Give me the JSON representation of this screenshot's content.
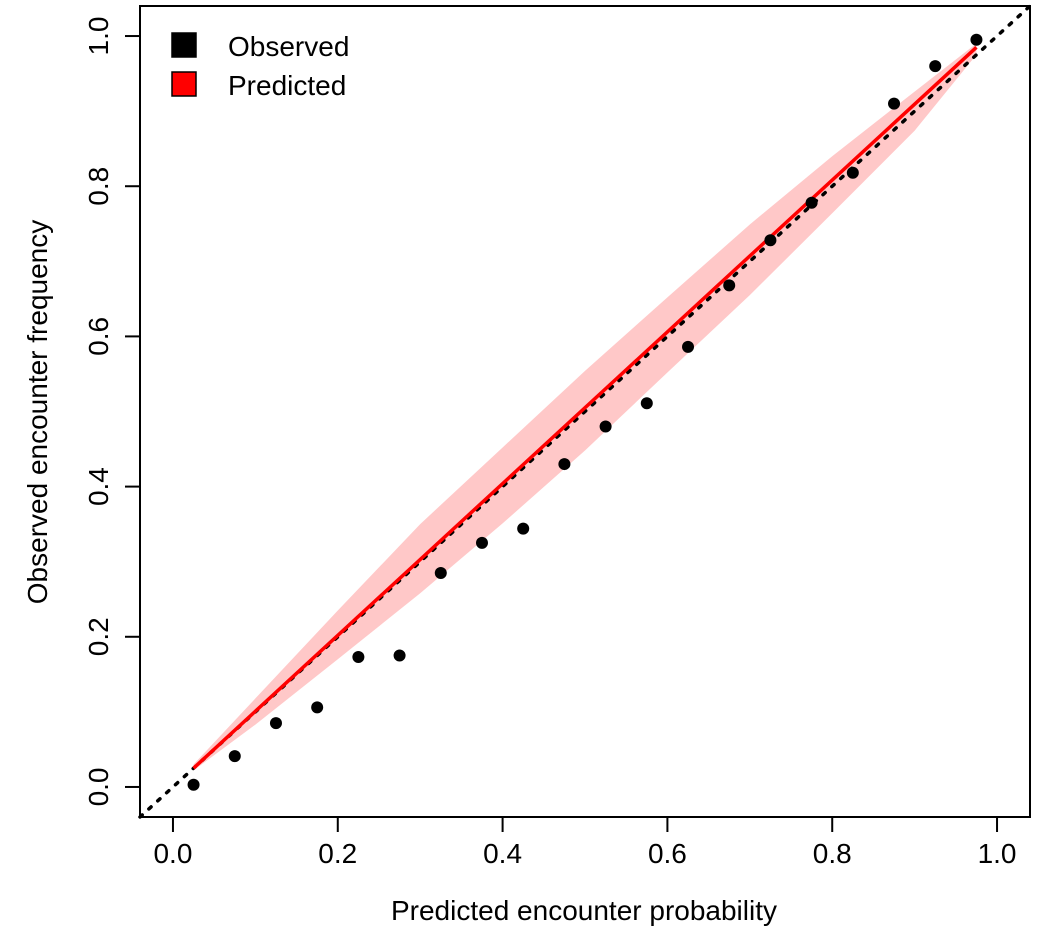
{
  "chart_data": {
    "type": "scatter",
    "title": "",
    "xlabel": "Predicted encounter probability",
    "ylabel": "Observed encounter frequency",
    "xlim": [
      -0.04,
      1.04
    ],
    "ylim": [
      -0.04,
      1.04
    ],
    "x_ticks": [
      0.0,
      0.2,
      0.4,
      0.6,
      0.8,
      1.0
    ],
    "y_ticks": [
      0.0,
      0.2,
      0.4,
      0.6,
      0.8,
      1.0
    ],
    "x_tick_labels": [
      "0.0",
      "0.2",
      "0.4",
      "0.6",
      "0.8",
      "1.0"
    ],
    "y_tick_labels": [
      "0.0",
      "0.2",
      "0.4",
      "0.6",
      "0.8",
      "1.0"
    ],
    "grid": false,
    "legend_position": "top-left",
    "legend": [
      {
        "label": "Observed",
        "color": "#000000"
      },
      {
        "label": "Predicted",
        "color": "#ff0000"
      }
    ],
    "colors": {
      "observed": "#000000",
      "predicted_line": "#ff0000",
      "predicted_band": "#ffc8c8",
      "reference": "#000000"
    },
    "observed": {
      "x": [
        0.025,
        0.075,
        0.125,
        0.175,
        0.225,
        0.275,
        0.325,
        0.375,
        0.425,
        0.475,
        0.525,
        0.575,
        0.625,
        0.675,
        0.725,
        0.775,
        0.825,
        0.875,
        0.925,
        0.975
      ],
      "y": [
        0.003,
        0.041,
        0.085,
        0.106,
        0.173,
        0.175,
        0.285,
        0.325,
        0.344,
        0.43,
        0.48,
        0.511,
        0.586,
        0.668,
        0.728,
        0.778,
        0.818,
        0.91,
        0.96,
        0.995
      ]
    },
    "predicted": {
      "x": [
        0.025,
        0.975
      ],
      "y": [
        0.025,
        0.985
      ]
    },
    "predicted_band": {
      "x": [
        0.025,
        0.1,
        0.2,
        0.3,
        0.4,
        0.5,
        0.6,
        0.7,
        0.8,
        0.9,
        0.975
      ],
      "lower": [
        0.022,
        0.083,
        0.17,
        0.258,
        0.351,
        0.448,
        0.552,
        0.655,
        0.764,
        0.874,
        0.975
      ],
      "upper": [
        0.03,
        0.118,
        0.235,
        0.35,
        0.452,
        0.554,
        0.652,
        0.749,
        0.84,
        0.926,
        0.99
      ]
    },
    "reference_line": {
      "x": [
        -0.04,
        1.04
      ],
      "y": [
        -0.04,
        1.04
      ]
    }
  }
}
